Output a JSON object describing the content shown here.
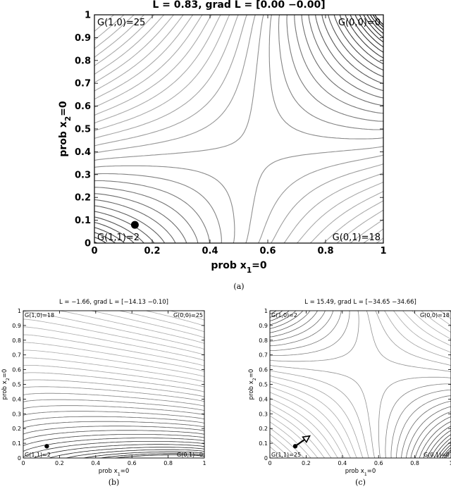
{
  "chart_data": [
    {
      "id": "a",
      "type": "contour",
      "title": "L = 0.83,  grad L = [0.00 −0.00]",
      "xlabel": "prob x",
      "xlabel_sub": "1",
      "xlabel_suffix": "=0",
      "ylabel": "prob x",
      "ylabel_sub": "2",
      "ylabel_suffix": "=0",
      "xlim": [
        0,
        1
      ],
      "ylim": [
        0,
        1
      ],
      "xticks": [
        "0",
        "0.2",
        "0.4",
        "0.6",
        "0.8",
        "1"
      ],
      "yticks": [
        "0",
        "0.1",
        "0.2",
        "0.3",
        "0.4",
        "0.5",
        "0.6",
        "0.7",
        "0.8",
        "0.9",
        "1"
      ],
      "corner_labels": {
        "top_left": "G(1,0)=25",
        "top_right": "G(0,0)=0",
        "bottom_left": "G(1,1)=2",
        "bottom_right": "G(0,1)=18"
      },
      "payoffs": {
        "G00": 0,
        "G10": 25,
        "G01": 18,
        "G11": 2
      },
      "point": [
        0.14,
        0.08
      ],
      "caption": "(a)"
    },
    {
      "id": "b",
      "type": "contour",
      "title": "L = −1.66,  grad L = [−14.13 −0.10]",
      "xlabel": "prob x",
      "xlabel_sub": "1",
      "xlabel_suffix": "=0",
      "ylabel": "prob x",
      "ylabel_sub": "2",
      "ylabel_suffix": "=0",
      "xlim": [
        0,
        1
      ],
      "ylim": [
        0,
        1
      ],
      "xticks": [
        "0",
        "0.2",
        "0.4",
        "0.6",
        "0.8",
        "1"
      ],
      "yticks": [
        "0",
        "0.1",
        "0.2",
        "0.3",
        "0.4",
        "0.5",
        "0.6",
        "0.7",
        "0.8",
        "0.9",
        "1"
      ],
      "corner_labels": {
        "top_left": "G(1,0)=18",
        "top_right": "G(0,0)=25",
        "bottom_left": "G(1,1)=2",
        "bottom_right": "G(0,1)=0"
      },
      "payoffs": {
        "G00": 25,
        "G10": 18,
        "G01": 0,
        "G11": 2
      },
      "point": [
        0.13,
        0.08
      ],
      "caption": "(b)"
    },
    {
      "id": "c",
      "type": "contour",
      "title": "L = 15.49,  grad L = [−34.65 −34.66]",
      "xlabel": "prob x",
      "xlabel_sub": "1",
      "xlabel_suffix": "=0",
      "ylabel": "prob x",
      "ylabel_sub": "2",
      "ylabel_suffix": "=0",
      "xlim": [
        0,
        1
      ],
      "ylim": [
        0,
        1
      ],
      "xticks": [
        "0",
        "0.2",
        "0.4",
        "0.6",
        "0.8",
        "1"
      ],
      "yticks": [
        "0",
        "0.1",
        "0.2",
        "0.3",
        "0.4",
        "0.5",
        "0.6",
        "0.7",
        "0.8",
        "0.9",
        "1"
      ],
      "corner_labels": {
        "top_left": "G(1,0)=2",
        "top_right": "G(0,0)=18",
        "bottom_left": "G(1,1)=25",
        "bottom_right": "G(0,1)=0"
      },
      "payoffs": {
        "G00": 18,
        "G10": 2,
        "G01": 0,
        "G11": 25
      },
      "point": [
        0.14,
        0.08
      ],
      "arrow_to": [
        0.22,
        0.15
      ],
      "caption": "(c)"
    }
  ]
}
